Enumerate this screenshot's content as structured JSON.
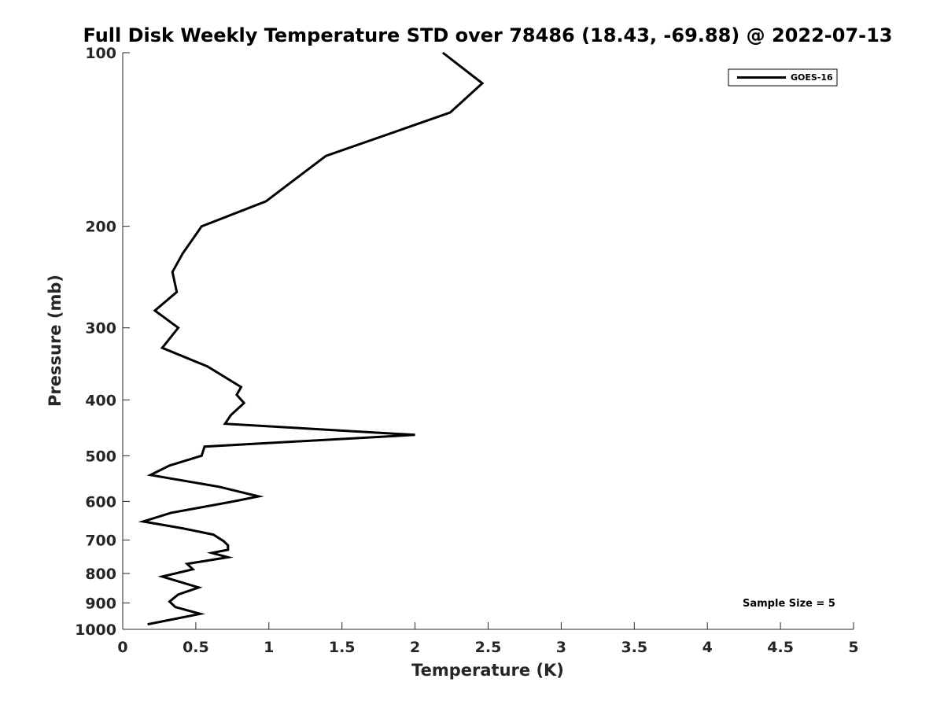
{
  "chart_data": {
    "type": "line",
    "title": "Full Disk Weekly Temperature STD over 78486 (18.43, -69.88) @ 2022-07-13",
    "xlabel": "Temperature (K)",
    "ylabel": "Pressure (mb)",
    "xlim": [
      0,
      5
    ],
    "ylim": [
      100,
      1000
    ],
    "y_scale": "log",
    "y_reversed": true,
    "x_ticks": [
      0,
      0.5,
      1,
      1.5,
      2,
      2.5,
      3,
      3.5,
      4,
      4.5,
      5
    ],
    "x_tick_labels": [
      "0",
      "0.5",
      "1",
      "1.5",
      "2",
      "2.5",
      "3",
      "3.5",
      "4",
      "4.5",
      "5"
    ],
    "y_ticks": [
      100,
      200,
      300,
      400,
      500,
      600,
      700,
      800,
      900,
      1000
    ],
    "y_tick_labels": [
      "100",
      "200",
      "300",
      "400",
      "500",
      "600",
      "700",
      "800",
      "900",
      "1000"
    ],
    "grid": false,
    "legend_position": "top-right",
    "series": [
      {
        "name": "GOES-16",
        "color": "#000000",
        "x": [
          2.19,
          2.46,
          2.24,
          1.39,
          0.98,
          0.54,
          0.41,
          0.34,
          0.37,
          0.22,
          0.38,
          0.27,
          0.58,
          0.81,
          0.78,
          0.83,
          0.74,
          0.7,
          2.0,
          0.56,
          0.54,
          0.32,
          0.19,
          0.66,
          0.93,
          0.73,
          0.33,
          0.14,
          0.41,
          0.62,
          0.69,
          0.72,
          0.72,
          0.61,
          0.72,
          0.44,
          0.48,
          0.27,
          0.52,
          0.38,
          0.32,
          0.36,
          0.53,
          0.17
        ],
        "y": [
          100,
          113,
          127,
          151,
          181,
          200,
          223,
          240,
          260,
          280,
          300,
          325,
          350,
          380,
          392,
          405,
          425,
          440,
          460,
          482,
          500,
          520,
          540,
          566,
          588,
          602,
          628,
          650,
          668,
          685,
          703,
          715,
          728,
          737,
          750,
          770,
          787,
          810,
          846,
          870,
          895,
          915,
          940,
          980
        ]
      }
    ],
    "annotations": [
      {
        "text": "Sample Size = 5",
        "position": "bottom-right"
      }
    ]
  }
}
